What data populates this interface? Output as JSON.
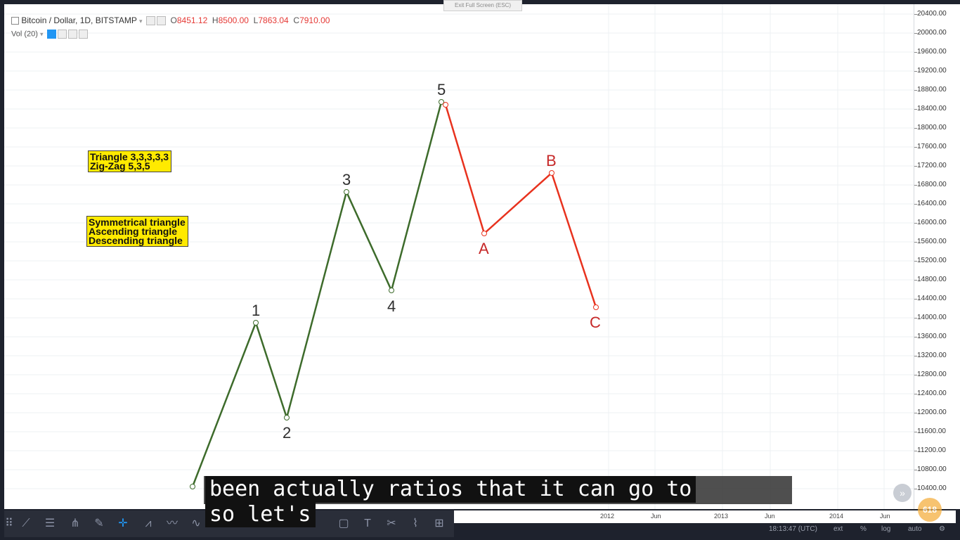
{
  "window": {
    "exit_fullscreen": "Exit Full Screen (ESC)"
  },
  "legend": {
    "symbol": "Bitcoin / Dollar, 1D, BITSTAMP",
    "o_label": "O",
    "o_value": "8451.12",
    "h_label": "H",
    "h_value": "8500.00",
    "l_label": "L",
    "l_value": "7863.04",
    "c_label": "C",
    "c_value": "7910.00",
    "volume": "Vol (20)"
  },
  "notes": {
    "box1_line1": "Triangle 3,3,3,3,3",
    "box1_line2": "Zig-Zag 5,3,5",
    "box2_line1": "Symmetrical triangle",
    "box2_line2": "Ascending triangle",
    "box2_line3": "Descending triangle"
  },
  "wave_labels": {
    "w1": "1",
    "w2": "2",
    "w3": "3",
    "w4": "4",
    "w5": "5",
    "wa": "A",
    "wb": "B",
    "wc": "C"
  },
  "price_axis": [
    "20400.00",
    "20000.00",
    "19600.00",
    "19200.00",
    "18800.00",
    "18400.00",
    "18000.00",
    "17600.00",
    "17200.00",
    "16800.00",
    "16400.00",
    "16000.00",
    "15600.00",
    "15200.00",
    "14800.00",
    "14400.00",
    "14000.00",
    "13600.00",
    "13200.00",
    "12800.00",
    "12400.00",
    "12000.00",
    "11600.00",
    "11200.00",
    "10800.00",
    "10400.00"
  ],
  "time_axis": [
    "2012",
    "Jun",
    "2013",
    "Jun",
    "2014",
    "Jun"
  ],
  "bottom_bar": {
    "clock": "18:13:47 (UTC)",
    "ext": "ext",
    "pct": "%",
    "log": "log",
    "auto": "auto"
  },
  "subtitles": {
    "line1": "been actually ratios that it can go to",
    "line2": "so let's"
  },
  "fib_badge": "618",
  "colors": {
    "impulse": "#3d6b2b",
    "correction": "#e8321e",
    "note_bg": "#ffea00"
  }
}
